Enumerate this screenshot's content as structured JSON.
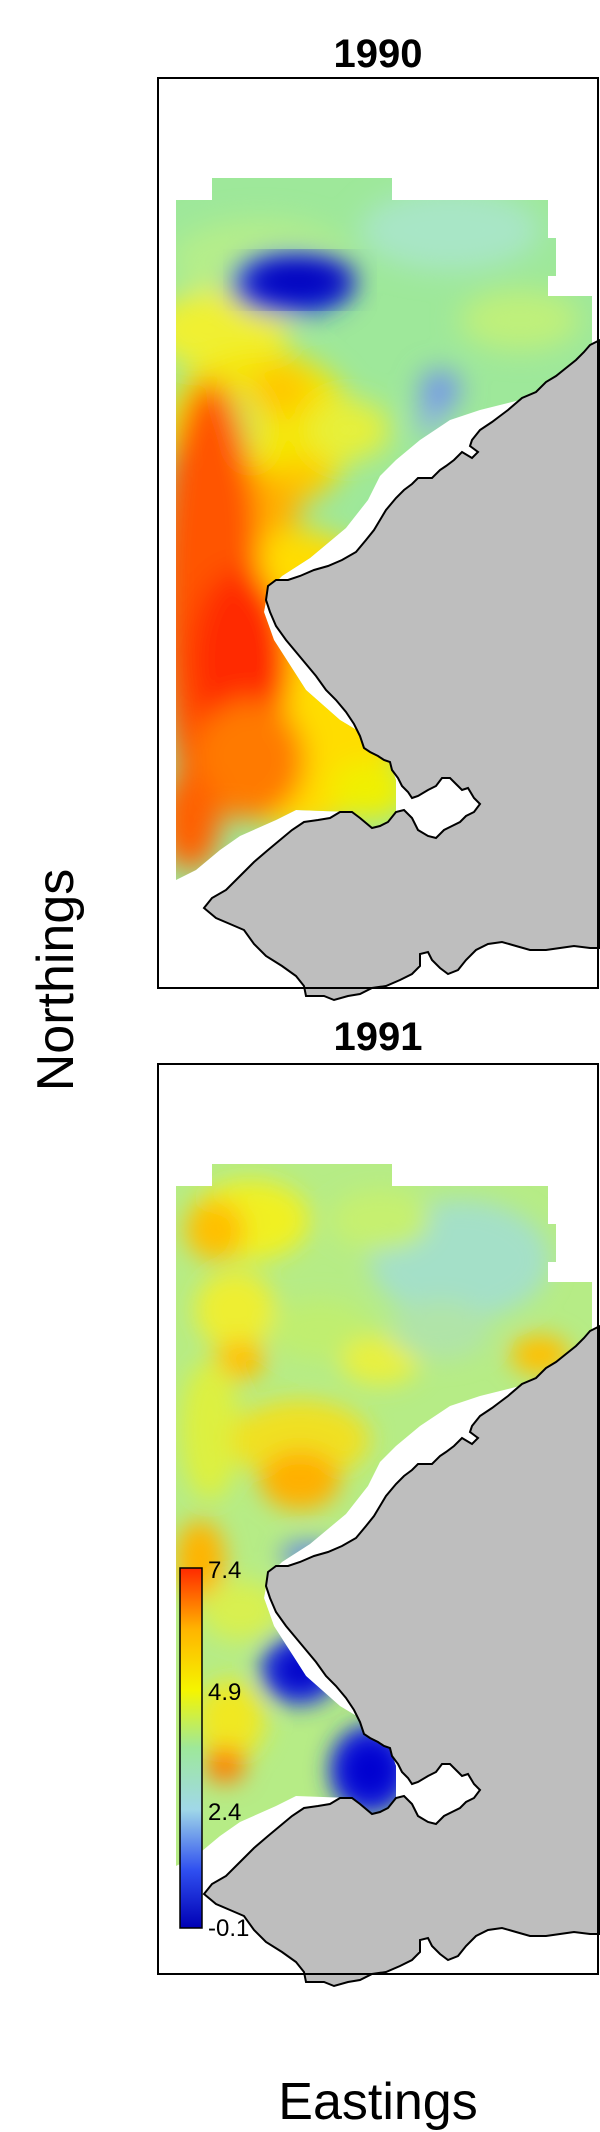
{
  "axes": {
    "xlabel": "Eastings",
    "ylabel": "Northings"
  },
  "panels": [
    {
      "title": "1990"
    },
    {
      "title": "1991"
    }
  ],
  "legend": {
    "ticks": [
      "7.4",
      "4.9",
      "2.4",
      "-0.1"
    ],
    "min": -0.1,
    "max": 7.4,
    "colors": [
      "#0000b4",
      "#2f4ff0",
      "#a0d8e8",
      "#9ee89a",
      "#f5f500",
      "#ffb400",
      "#ff2a00"
    ]
  },
  "colors": {
    "land": "#bebebe",
    "coast": "#000000"
  }
}
